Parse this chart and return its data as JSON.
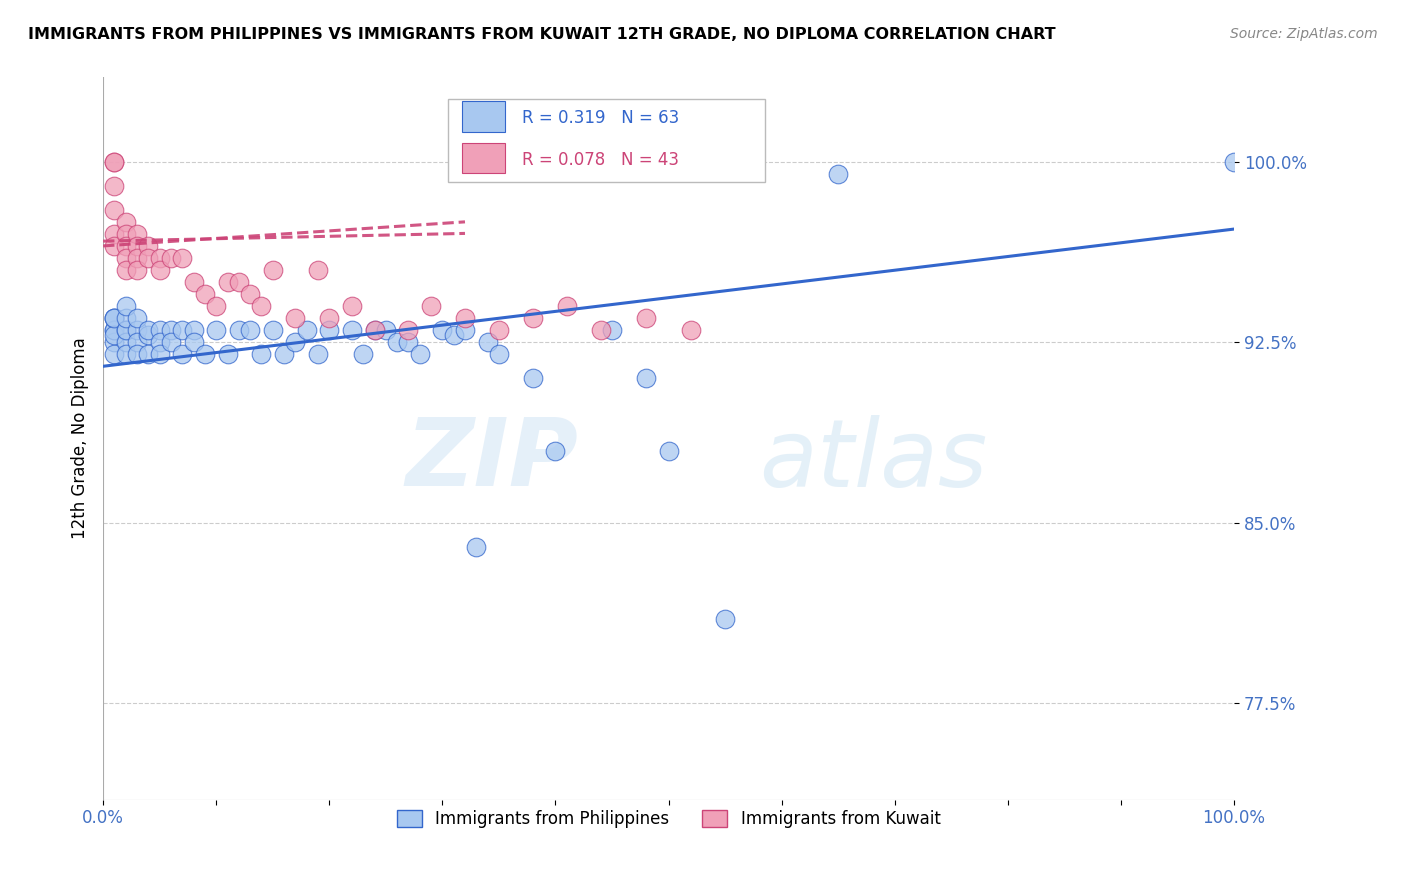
{
  "title": "IMMIGRANTS FROM PHILIPPINES VS IMMIGRANTS FROM KUWAIT 12TH GRADE, NO DIPLOMA CORRELATION CHART",
  "source": "Source: ZipAtlas.com",
  "ylabel": "12th Grade, No Diploma",
  "ytick_positions": [
    0.775,
    0.85,
    0.925,
    1.0
  ],
  "ytick_labels": [
    "77.5%",
    "85.0%",
    "92.5%",
    "100.0%"
  ],
  "xmin": 0.0,
  "xmax": 1.0,
  "ymin": 0.735,
  "ymax": 1.035,
  "r_philippines": 0.319,
  "n_philippines": 63,
  "r_kuwait": 0.078,
  "n_kuwait": 43,
  "legend_label_philippines": "Immigrants from Philippines",
  "legend_label_kuwait": "Immigrants from Kuwait",
  "color_philippines": "#a8c8f0",
  "color_philippines_line": "#3366cc",
  "color_kuwait": "#f0a0b8",
  "color_kuwait_line": "#cc4477",
  "watermark_zip": "ZIP",
  "watermark_atlas": "atlas",
  "axis_color": "#4472c4",
  "grid_color": "#cccccc",
  "philippines_x": [
    0.01,
    0.01,
    0.01,
    0.01,
    0.01,
    0.01,
    0.01,
    0.01,
    0.02,
    0.02,
    0.02,
    0.02,
    0.02,
    0.02,
    0.03,
    0.03,
    0.03,
    0.03,
    0.04,
    0.04,
    0.04,
    0.05,
    0.05,
    0.05,
    0.06,
    0.06,
    0.07,
    0.07,
    0.08,
    0.08,
    0.09,
    0.1,
    0.11,
    0.12,
    0.13,
    0.14,
    0.15,
    0.16,
    0.17,
    0.18,
    0.19,
    0.2,
    0.22,
    0.23,
    0.24,
    0.25,
    0.26,
    0.27,
    0.28,
    0.3,
    0.31,
    0.32,
    0.33,
    0.34,
    0.35,
    0.38,
    0.4,
    0.45,
    0.48,
    0.5,
    0.55,
    0.65,
    1.0
  ],
  "philippines_y": [
    0.935,
    0.93,
    0.925,
    0.92,
    0.93,
    0.935,
    0.928,
    0.935,
    0.93,
    0.925,
    0.93,
    0.935,
    0.94,
    0.92,
    0.93,
    0.925,
    0.935,
    0.92,
    0.928,
    0.93,
    0.92,
    0.93,
    0.925,
    0.92,
    0.93,
    0.925,
    0.93,
    0.92,
    0.93,
    0.925,
    0.92,
    0.93,
    0.92,
    0.93,
    0.93,
    0.92,
    0.93,
    0.92,
    0.925,
    0.93,
    0.92,
    0.93,
    0.93,
    0.92,
    0.93,
    0.93,
    0.925,
    0.925,
    0.92,
    0.93,
    0.928,
    0.93,
    0.84,
    0.925,
    0.92,
    0.91,
    0.88,
    0.93,
    0.91,
    0.88,
    0.81,
    0.995,
    1.0
  ],
  "kuwait_x": [
    0.01,
    0.01,
    0.01,
    0.01,
    0.01,
    0.01,
    0.02,
    0.02,
    0.02,
    0.02,
    0.02,
    0.03,
    0.03,
    0.03,
    0.03,
    0.04,
    0.04,
    0.05,
    0.05,
    0.06,
    0.07,
    0.08,
    0.09,
    0.1,
    0.11,
    0.12,
    0.13,
    0.14,
    0.15,
    0.17,
    0.19,
    0.2,
    0.22,
    0.24,
    0.27,
    0.29,
    0.32,
    0.35,
    0.38,
    0.41,
    0.44,
    0.48,
    0.52
  ],
  "kuwait_y": [
    1.0,
    1.0,
    0.99,
    0.98,
    0.97,
    0.965,
    0.975,
    0.97,
    0.965,
    0.96,
    0.955,
    0.97,
    0.965,
    0.96,
    0.955,
    0.965,
    0.96,
    0.96,
    0.955,
    0.96,
    0.96,
    0.95,
    0.945,
    0.94,
    0.95,
    0.95,
    0.945,
    0.94,
    0.955,
    0.935,
    0.955,
    0.935,
    0.94,
    0.93,
    0.93,
    0.94,
    0.935,
    0.93,
    0.935,
    0.94,
    0.93,
    0.935,
    0.93
  ]
}
